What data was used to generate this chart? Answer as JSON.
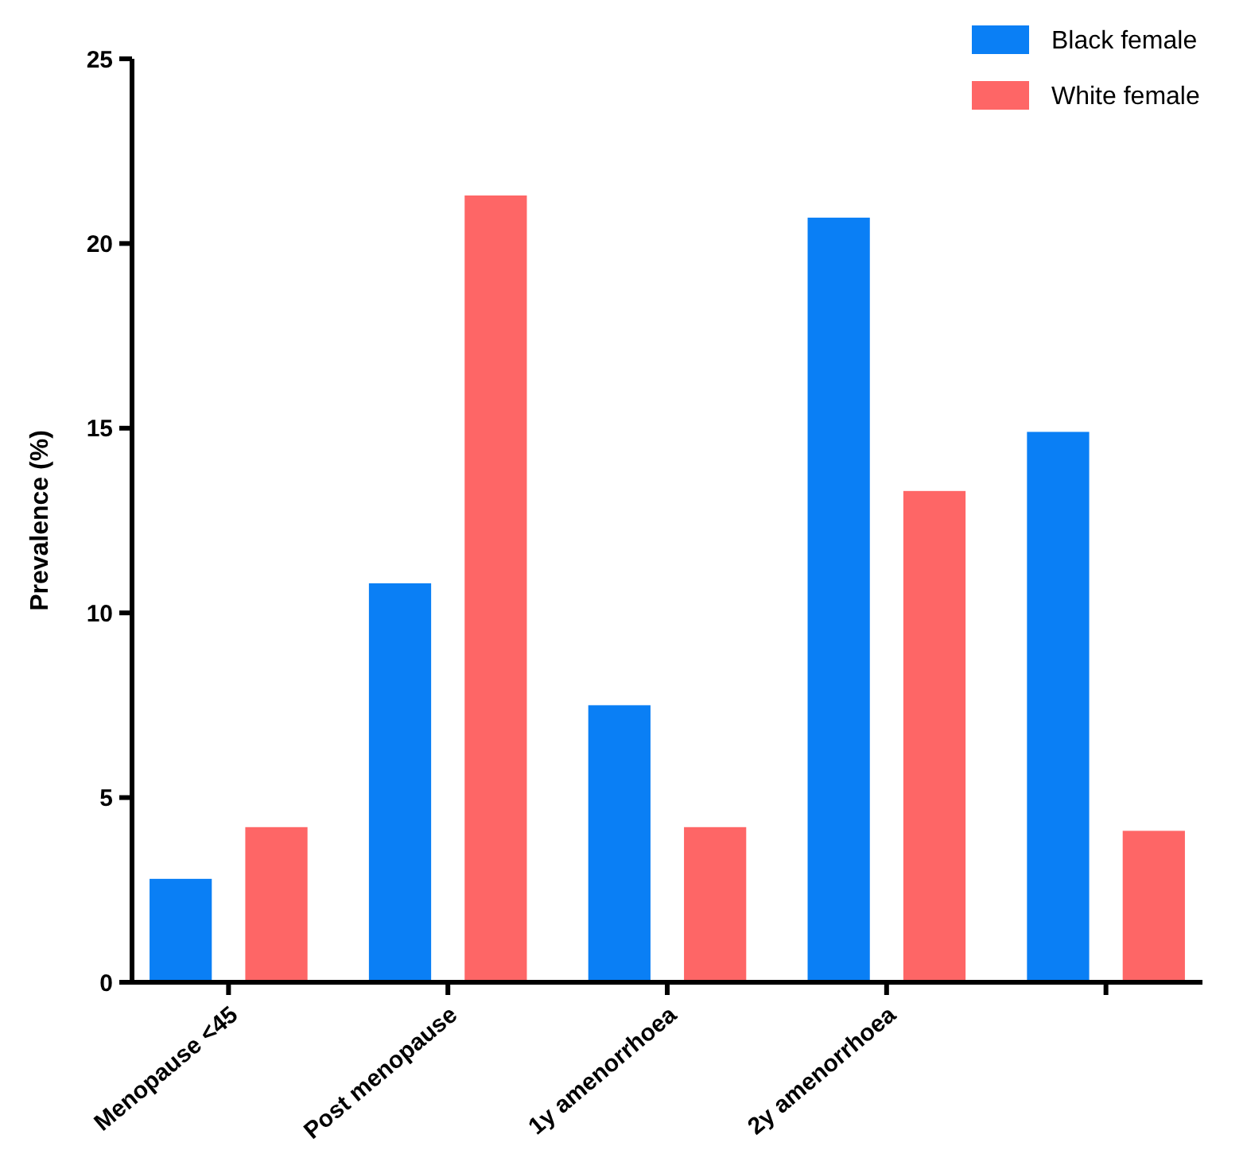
{
  "chart_data": {
    "type": "bar",
    "ylabel": "Prevalence (%)",
    "categories": [
      "Menopause <45",
      "Post menopause",
      "1y amenorrhoea",
      "2y amenorrhoea",
      null
    ],
    "series": [
      {
        "name": "Black female",
        "color": "#0a7ff5",
        "values": [
          2.8,
          10.8,
          7.5,
          20.7,
          14.9
        ]
      },
      {
        "name": "White female",
        "color": "#fe6666",
        "values": [
          4.2,
          21.3,
          4.2,
          13.3,
          4.1
        ]
      }
    ],
    "ylim": [
      0,
      25
    ],
    "yticks": [
      0,
      5,
      10,
      15,
      20,
      25
    ],
    "legend": "top right",
    "grid": false
  }
}
